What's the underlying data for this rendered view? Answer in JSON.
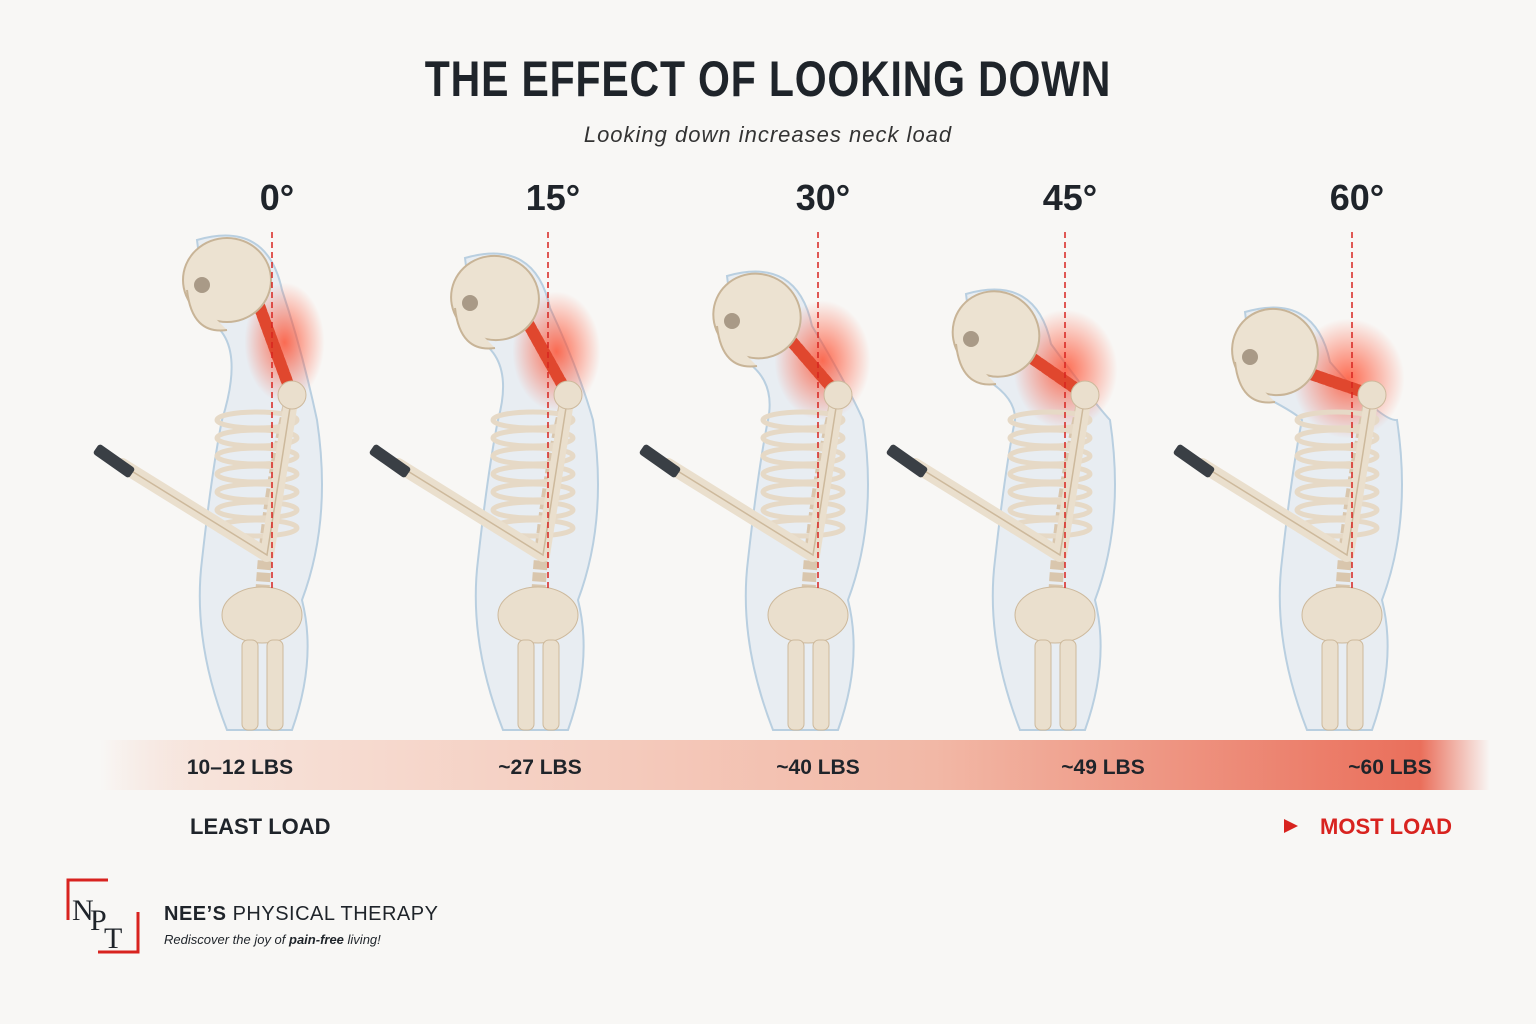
{
  "header": {
    "title": "THE EFFECT OF LOOKING DOWN",
    "subtitle": "Looking down increases neck load"
  },
  "postures": [
    {
      "angle": "0°",
      "load": "10–12 LBS"
    },
    {
      "angle": "15°",
      "load": "~27 LBS"
    },
    {
      "angle": "30°",
      "load": "~40 LBS"
    },
    {
      "angle": "45°",
      "load": "~49 LBS"
    },
    {
      "angle": "60°",
      "load": "~60 LBS"
    }
  ],
  "scale": {
    "least": "LEAST LOAD",
    "most": "MOST LOAD"
  },
  "brand": {
    "logo_letters": [
      "N",
      "P",
      "T"
    ],
    "name_bold": "NEE’S",
    "name_rest": "PHYSICAL THERAPY",
    "tagline": [
      "Rediscover the joy of ",
      "pain-free",
      " living!"
    ]
  }
}
